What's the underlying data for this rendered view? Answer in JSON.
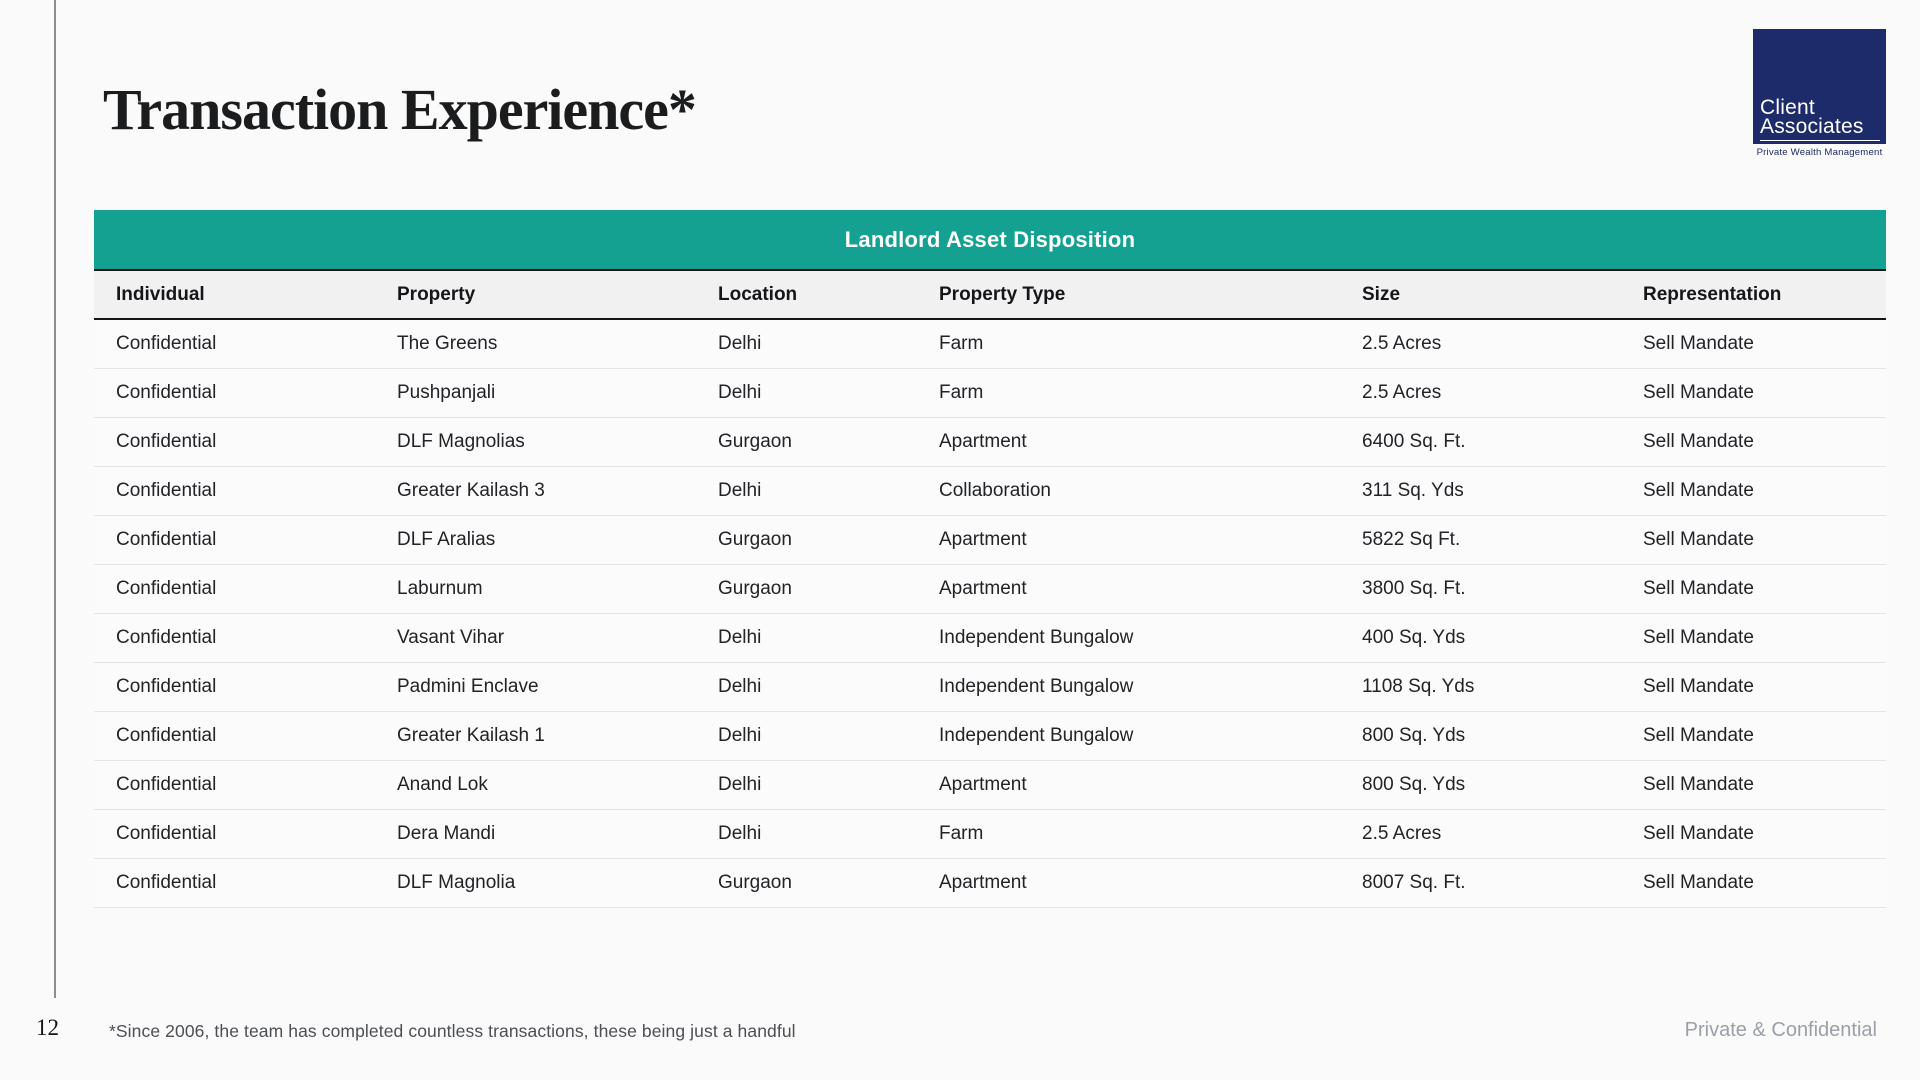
{
  "page": {
    "title": "Transaction Experience*",
    "number": "12",
    "footnote": "*Since 2006, the team has completed countless transactions, these being just a handful",
    "confidential_label": "Private & Confidential"
  },
  "logo": {
    "line1": "Client",
    "line2": "Associates",
    "tagline": "Private Wealth Management",
    "navy_color": "#1E2B6A"
  },
  "table": {
    "banner": "Landlord Asset Disposition",
    "banner_color": "#14A191",
    "columns": [
      "Individual",
      "Property",
      "Location",
      "Property Type",
      "Size",
      "Representation"
    ],
    "rows": [
      [
        "Confidential",
        "The Greens",
        "Delhi",
        "Farm",
        "2.5 Acres",
        "Sell Mandate"
      ],
      [
        "Confidential",
        "Pushpanjali",
        "Delhi",
        "Farm",
        "2.5 Acres",
        "Sell Mandate"
      ],
      [
        "Confidential",
        "DLF Magnolias",
        "Gurgaon",
        "Apartment",
        "6400 Sq. Ft.",
        "Sell Mandate"
      ],
      [
        "Confidential",
        "Greater Kailash 3",
        "Delhi",
        "Collaboration",
        "311 Sq. Yds",
        "Sell Mandate"
      ],
      [
        "Confidential",
        "DLF Aralias",
        "Gurgaon",
        "Apartment",
        "5822 Sq Ft.",
        "Sell Mandate"
      ],
      [
        "Confidential",
        "Laburnum",
        "Gurgaon",
        "Apartment",
        "3800 Sq. Ft.",
        "Sell Mandate"
      ],
      [
        "Confidential",
        "Vasant Vihar",
        "Delhi",
        "Independent Bungalow",
        "400 Sq. Yds",
        "Sell Mandate"
      ],
      [
        "Confidential",
        "Padmini Enclave",
        "Delhi",
        "Independent Bungalow",
        "1108 Sq. Yds",
        "Sell Mandate"
      ],
      [
        "Confidential",
        "Greater Kailash 1",
        "Delhi",
        "Independent Bungalow",
        "800 Sq. Yds",
        "Sell Mandate"
      ],
      [
        "Confidential",
        "Anand Lok",
        "Delhi",
        "Apartment",
        "800 Sq. Yds",
        "Sell Mandate"
      ],
      [
        "Confidential",
        "Dera Mandi",
        "Delhi",
        "Farm",
        "2.5 Acres",
        "Sell Mandate"
      ],
      [
        "Confidential",
        "DLF Magnolia",
        "Gurgaon",
        "Apartment",
        "8007 Sq. Ft.",
        "Sell Mandate"
      ]
    ]
  }
}
